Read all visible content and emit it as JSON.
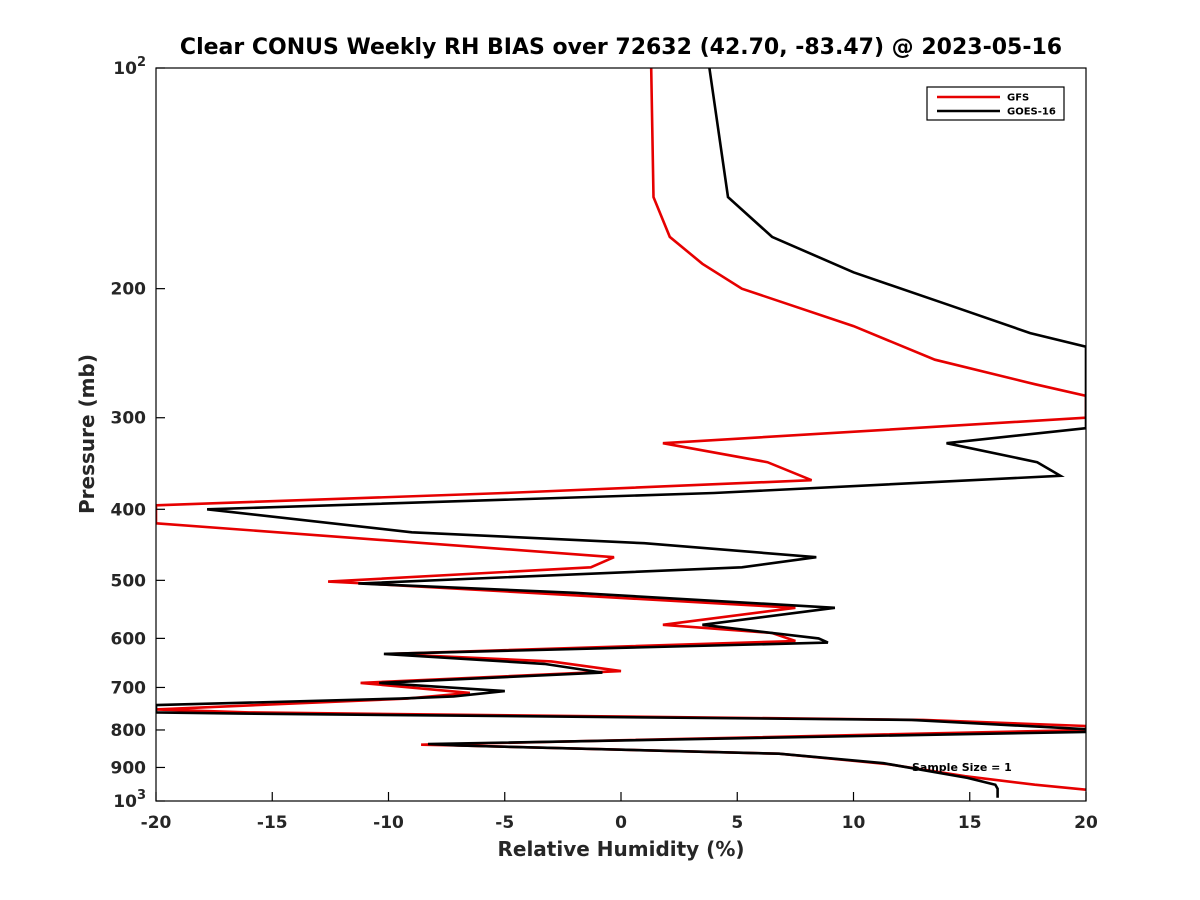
{
  "chart_data": {
    "type": "line",
    "title": "Clear CONUS Weekly RH BIAS over 72632 (42.70, -83.47) @ 2023-05-16",
    "xlabel": "Relative Humidity (%)",
    "ylabel": "Pressure (mb)",
    "xlim": [
      -20,
      20
    ],
    "ylim": [
      100,
      1000
    ],
    "y_scale": "log",
    "y_reversed": true,
    "x_ticks": [
      "-20",
      "-15",
      "-10",
      "-5",
      "0",
      "5",
      "10",
      "15",
      "20"
    ],
    "y_ticks": [
      {
        "value": 100,
        "base": "10",
        "exp": "2"
      },
      {
        "value": 200,
        "label": "200"
      },
      {
        "value": 300,
        "label": "300"
      },
      {
        "value": 400,
        "label": "400"
      },
      {
        "value": 500,
        "label": "500"
      },
      {
        "value": 600,
        "label": "600"
      },
      {
        "value": 700,
        "label": "700"
      },
      {
        "value": 800,
        "label": "800"
      },
      {
        "value": 900,
        "label": "900"
      },
      {
        "value": 1000,
        "base": "10",
        "exp": "3"
      }
    ],
    "grid": false,
    "legend_position": "top-right",
    "annotation": "Sample Size = 1",
    "series": [
      {
        "name": "GFS",
        "color": "#e60000",
        "points": [
          [
            1.3,
            100
          ],
          [
            1.4,
            150
          ],
          [
            2.1,
            170
          ],
          [
            3.5,
            185
          ],
          [
            5.2,
            200
          ],
          [
            10,
            225
          ],
          [
            13.5,
            250
          ],
          [
            17.8,
            270
          ],
          [
            20,
            280
          ],
          [
            20,
            300
          ],
          [
            1.8,
            325
          ],
          [
            6.3,
            345
          ],
          [
            8.2,
            365
          ],
          [
            -5,
            380
          ],
          [
            -20,
            395
          ],
          [
            -20,
            418
          ],
          [
            -0.3,
            465
          ],
          [
            -1.3,
            480
          ],
          [
            -12.6,
            502
          ],
          [
            -11,
            505
          ],
          [
            7.5,
            545
          ],
          [
            1.8,
            575
          ],
          [
            6.5,
            590
          ],
          [
            7.5,
            605
          ],
          [
            -10,
            630
          ],
          [
            -3,
            645
          ],
          [
            0,
            665
          ],
          [
            -11.2,
            690
          ],
          [
            -6.5,
            712
          ],
          [
            -9.2,
            725
          ],
          [
            -20,
            750
          ],
          [
            -16,
            757
          ],
          [
            13,
            775
          ],
          [
            20,
            790
          ],
          [
            20,
            800
          ],
          [
            -8.6,
            838
          ],
          [
            -7,
            840
          ],
          [
            6.8,
            862
          ],
          [
            11.4,
            890
          ],
          [
            14.8,
            925
          ],
          [
            17.8,
            950
          ],
          [
            20,
            965
          ]
        ]
      },
      {
        "name": "GOES-16",
        "color": "#000000",
        "points": [
          [
            3.8,
            100
          ],
          [
            4.6,
            150
          ],
          [
            6.5,
            170
          ],
          [
            10,
            190
          ],
          [
            14,
            210
          ],
          [
            17.6,
            230
          ],
          [
            20,
            240
          ],
          [
            20,
            310
          ],
          [
            14,
            325
          ],
          [
            17.9,
            345
          ],
          [
            18.9,
            360
          ],
          [
            4,
            380
          ],
          [
            -17.8,
            400
          ],
          [
            -9,
            430
          ],
          [
            1,
            445
          ],
          [
            8.4,
            465
          ],
          [
            5.2,
            480
          ],
          [
            -11.3,
            505
          ],
          [
            -2,
            520
          ],
          [
            9.2,
            545
          ],
          [
            3.5,
            575
          ],
          [
            8.5,
            600
          ],
          [
            8.9,
            608
          ],
          [
            -10.2,
            630
          ],
          [
            -3.3,
            650
          ],
          [
            -0.8,
            668
          ],
          [
            -10.4,
            690
          ],
          [
            -5,
            708
          ],
          [
            -7.2,
            720
          ],
          [
            -9.5,
            725
          ],
          [
            -20,
            740
          ],
          [
            -20,
            757
          ],
          [
            -16.3,
            760
          ],
          [
            12.5,
            775
          ],
          [
            20,
            798
          ],
          [
            20,
            805
          ],
          [
            -8.3,
            836
          ],
          [
            -7,
            840
          ],
          [
            6.8,
            862
          ],
          [
            11.3,
            888
          ],
          [
            14.9,
            930
          ],
          [
            16.1,
            950
          ],
          [
            16.2,
            962
          ],
          [
            16.2,
            990
          ]
        ]
      }
    ]
  }
}
